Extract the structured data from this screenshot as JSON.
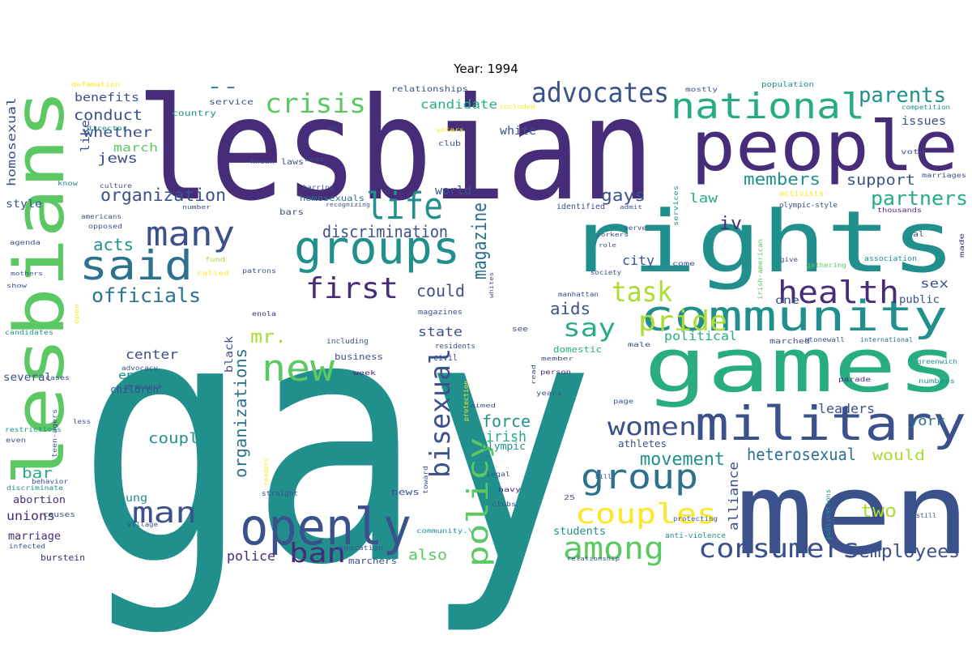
{
  "title": "Year: 1994",
  "palette": {
    "dark_purple": "#472c7a",
    "indigo": "#3b518b",
    "blue": "#2c718e",
    "teal": "#21908d",
    "green": "#27ad81",
    "lime": "#5cc863",
    "yellow_green": "#aadc32",
    "yellow": "#fde725"
  },
  "words": [
    {
      "text": "gay",
      "color": "#21908d"
    },
    {
      "text": "lesbian",
      "color": "#472c7a"
    },
    {
      "text": "men",
      "color": "#3b518b"
    },
    {
      "text": "games",
      "color": "#27ad81"
    },
    {
      "text": "rights",
      "color": "#21908d"
    },
    {
      "text": "people",
      "color": "#472c7a"
    },
    {
      "text": "lesbians",
      "color": "#5cc863"
    },
    {
      "text": "military",
      "color": "#3b518b"
    },
    {
      "text": "openly",
      "color": "#3b518b"
    },
    {
      "text": "community",
      "color": "#21908d"
    },
    {
      "text": "groups",
      "color": "#21908d"
    },
    {
      "text": "national",
      "color": "#27ad81"
    },
    {
      "text": "said",
      "color": "#2c718e"
    },
    {
      "text": "new",
      "color": "#5cc863"
    },
    {
      "text": "life",
      "color": "#21908d"
    },
    {
      "text": "many",
      "color": "#3b518b"
    },
    {
      "text": "health",
      "color": "#472c7a"
    },
    {
      "text": "group",
      "color": "#2c718e"
    },
    {
      "text": "couples",
      "color": "#fde725"
    },
    {
      "text": "among",
      "color": "#5cc863"
    },
    {
      "text": "consumers",
      "color": "#3b518b"
    },
    {
      "text": "man",
      "color": "#3b518b"
    },
    {
      "text": "ban",
      "color": "#472c7a"
    },
    {
      "text": "women",
      "color": "#3b518b"
    },
    {
      "text": "first",
      "color": "#472c7a"
    },
    {
      "text": "advocates",
      "color": "#3b518b"
    },
    {
      "text": "crisis",
      "color": "#5cc863"
    },
    {
      "text": "pride",
      "color": "#aadc32"
    },
    {
      "text": "task",
      "color": "#aadc32"
    },
    {
      "text": "policy",
      "color": "#5cc863"
    },
    {
      "text": "bisexual",
      "color": "#3b518b"
    },
    {
      "text": "say",
      "color": "#27ad81"
    },
    {
      "text": "parents",
      "color": "#21908d"
    },
    {
      "text": "partners",
      "color": "#27ad81"
    },
    {
      "text": "magazine",
      "color": "#2c718e"
    },
    {
      "text": "organization",
      "color": "#3b518b"
    },
    {
      "text": "discrimination",
      "color": "#3b518b"
    },
    {
      "text": "officials",
      "color": "#2c718e"
    },
    {
      "text": "organizations",
      "color": "#2c718e"
    },
    {
      "text": "employees",
      "color": "#3b518b"
    },
    {
      "text": "movement",
      "color": "#21908d"
    },
    {
      "text": "heterosexual",
      "color": "#2c718e"
    },
    {
      "text": "mr.",
      "color": "#aadc32"
    },
    {
      "text": "two",
      "color": "#aadc32"
    },
    {
      "text": "--",
      "color": "#2c718e"
    },
    {
      "text": "could",
      "color": "#3b518b"
    },
    {
      "text": "aids",
      "color": "#3b518b"
    },
    {
      "text": "force",
      "color": "#21908d"
    },
    {
      "text": "couple",
      "color": "#21908d"
    },
    {
      "text": "members",
      "color": "#21908d"
    },
    {
      "text": "gays",
      "color": "#3b518b"
    },
    {
      "text": "acts",
      "color": "#21908d"
    },
    {
      "text": "conduct",
      "color": "#3b518b"
    },
    {
      "text": "support",
      "color": "#3b518b"
    },
    {
      "text": "would",
      "color": "#aadc32"
    },
    {
      "text": "york",
      "color": "#2c718e"
    },
    {
      "text": "bar",
      "color": "#27ad81"
    },
    {
      "text": "iv",
      "color": "#472c7a"
    },
    {
      "text": "also",
      "color": "#5cc863"
    },
    {
      "text": "whether",
      "color": "#3b518b"
    },
    {
      "text": "jews",
      "color": "#3b518b"
    },
    {
      "text": "center",
      "color": "#3b518b"
    },
    {
      "text": "state",
      "color": "#3b518b"
    },
    {
      "text": "law",
      "color": "#27ad81"
    },
    {
      "text": "city",
      "color": "#3b518b"
    },
    {
      "text": "irish",
      "color": "#27ad81"
    },
    {
      "text": "police",
      "color": "#472c7a"
    },
    {
      "text": "alliance",
      "color": "#3b518b"
    },
    {
      "text": "leaders",
      "color": "#3b518b"
    },
    {
      "text": "political",
      "color": "#27ad81"
    },
    {
      "text": "sex",
      "color": "#3b518b"
    },
    {
      "text": "candidate",
      "color": "#27ad81"
    },
    {
      "text": "benefits",
      "color": "#3b518b"
    },
    {
      "text": "march",
      "color": "#5cc863"
    },
    {
      "text": "like",
      "color": "#3b518b"
    },
    {
      "text": "homosexual",
      "color": "#3b518b"
    },
    {
      "text": "issues",
      "color": "#3b518b"
    },
    {
      "text": "white",
      "color": "#3b518b"
    },
    {
      "text": "world",
      "color": "#3b518b"
    },
    {
      "text": "black",
      "color": "#3b518b"
    },
    {
      "text": "engage",
      "color": "#21908d"
    },
    {
      "text": "children",
      "color": "#3b518b"
    },
    {
      "text": "unions",
      "color": "#472c7a"
    },
    {
      "text": "marriage",
      "color": "#472c7a"
    },
    {
      "text": "young",
      "color": "#21908d"
    },
    {
      "text": "students",
      "color": "#21908d"
    },
    {
      "text": "athletes",
      "color": "#3b518b"
    },
    {
      "text": "style",
      "color": "#3b518b"
    },
    {
      "text": "several",
      "color": "#3b518b"
    },
    {
      "text": "abortion",
      "color": "#472c7a"
    },
    {
      "text": "public",
      "color": "#3b518b"
    },
    {
      "text": "one",
      "color": "#3b518b"
    },
    {
      "text": "olympic",
      "color": "#21908d"
    },
    {
      "text": "business",
      "color": "#3b518b"
    },
    {
      "text": "marchers",
      "color": "#3b518b"
    },
    {
      "text": "burstein",
      "color": "#472c7a"
    },
    {
      "text": "news",
      "color": "#3b518b"
    },
    {
      "text": "civil",
      "color": "#3b518b"
    },
    {
      "text": "homosexuals",
      "color": "#2c718e"
    },
    {
      "text": "bars",
      "color": "#3b518b"
    },
    {
      "text": "relationships",
      "color": "#3b518b"
    },
    {
      "text": "service",
      "color": "#3b518b"
    },
    {
      "text": "country",
      "color": "#21908d"
    },
    {
      "text": "domestic",
      "color": "#27ad81"
    },
    {
      "text": "defamation",
      "color": "#fde725"
    },
    {
      "text": "director",
      "color": "#21908d"
    },
    {
      "text": "mostly",
      "color": "#3b518b"
    },
    {
      "text": "population",
      "color": "#21908d"
    },
    {
      "text": "competition",
      "color": "#21908d"
    },
    {
      "text": "vote",
      "color": "#3b518b"
    },
    {
      "text": "marriages",
      "color": "#3b518b"
    },
    {
      "text": "activists",
      "color": "#fde725"
    },
    {
      "text": "olympic-style",
      "color": "#3b518b"
    },
    {
      "text": "thousands",
      "color": "#472c7a"
    },
    {
      "text": "al",
      "color": "#3b518b"
    },
    {
      "text": "made",
      "color": "#472c7a"
    },
    {
      "text": "association",
      "color": "#21908d"
    },
    {
      "text": "gathering",
      "color": "#5cc863"
    },
    {
      "text": "irish-american",
      "color": "#5cc863"
    },
    {
      "text": "stonewall",
      "color": "#3b518b"
    },
    {
      "text": "international",
      "color": "#2c718e"
    },
    {
      "text": "greenwich",
      "color": "#21908d"
    },
    {
      "text": "numbers",
      "color": "#21908d"
    },
    {
      "text": "parade",
      "color": "#472c7a"
    },
    {
      "text": "marched",
      "color": "#3b518b"
    },
    {
      "text": "male",
      "color": "#3b518b"
    },
    {
      "text": "anti-violence",
      "color": "#21908d"
    },
    {
      "text": "protecting",
      "color": "#3b518b"
    },
    {
      "text": "publications",
      "color": "#21908d"
    },
    {
      "text": "still",
      "color": "#3b518b"
    },
    {
      "text": "clubs",
      "color": "#3b518b"
    },
    {
      "text": "navy",
      "color": "#472c7a"
    },
    {
      "text": "25",
      "color": "#3b518b"
    },
    {
      "text": "community.\\",
      "color": "#21908d"
    },
    {
      "text": "relationship",
      "color": "#3b518b"
    },
    {
      "text": "education",
      "color": "#3b518b"
    },
    {
      "text": "village",
      "color": "#3b518b"
    },
    {
      "text": "infected",
      "color": "#3b518b"
    },
    {
      "text": "causes",
      "color": "#3b518b"
    },
    {
      "text": "behavior",
      "color": "#3b518b"
    },
    {
      "text": "discriminate",
      "color": "#21908d"
    },
    {
      "text": "even",
      "color": "#3b518b"
    },
    {
      "text": "restrictions",
      "color": "#21908d"
    },
    {
      "text": "less",
      "color": "#3b518b"
    },
    {
      "text": "teen-agers",
      "color": "#3b518b"
    },
    {
      "text": "cases",
      "color": "#3b518b"
    },
    {
      "text": "presence",
      "color": "#3b518b"
    },
    {
      "text": "advocacy",
      "color": "#3b518b"
    },
    {
      "text": "candidates",
      "color": "#21908d"
    },
    {
      "text": "open",
      "color": "#fde725"
    },
    {
      "text": "show",
      "color": "#3b518b"
    },
    {
      "text": "mothers",
      "color": "#3b518b"
    },
    {
      "text": "called",
      "color": "#fde725"
    },
    {
      "text": "fund",
      "color": "#aadc32"
    },
    {
      "text": "agenda",
      "color": "#3b518b"
    },
    {
      "text": "opposed",
      "color": "#3b518b"
    },
    {
      "text": "americans",
      "color": "#3b518b"
    },
    {
      "text": "know",
      "color": "#21908d"
    },
    {
      "text": "culture",
      "color": "#3b518b"
    },
    {
      "text": "number",
      "color": "#3b518b"
    },
    {
      "text": "recognizing",
      "color": "#3b518b"
    },
    {
      "text": "barring",
      "color": "#3b518b"
    },
    {
      "text": "known",
      "color": "#3b518b"
    },
    {
      "text": "laws",
      "color": "#3b518b"
    },
    {
      "text": "west",
      "color": "#3b518b"
    },
    {
      "text": "club",
      "color": "#3b518b"
    },
    {
      "text": "voters",
      "color": "#fde725"
    },
    {
      "text": "ms.",
      "color": "#3b518b"
    },
    {
      "text": "included",
      "color": "#fde725"
    },
    {
      "text": "identified",
      "color": "#3b518b"
    },
    {
      "text": "admit",
      "color": "#3b518b"
    },
    {
      "text": "services",
      "color": "#21908d"
    },
    {
      "text": "yorkers",
      "color": "#3b518b"
    },
    {
      "text": "serve",
      "color": "#3b518b"
    },
    {
      "text": "role",
      "color": "#3b518b"
    },
    {
      "text": "society",
      "color": "#3b518b"
    },
    {
      "text": "come",
      "color": "#3b518b"
    },
    {
      "text": "give",
      "color": "#3b518b"
    },
    {
      "text": "manhattan",
      "color": "#3b518b"
    },
    {
      "text": "patrons",
      "color": "#3b518b"
    },
    {
      "text": "whites",
      "color": "#3b518b"
    },
    {
      "text": "enola",
      "color": "#472c7a"
    },
    {
      "text": "magazines",
      "color": "#3b518b"
    },
    {
      "text": "see",
      "color": "#3b518b"
    },
    {
      "text": "including",
      "color": "#3b518b"
    },
    {
      "text": "residents",
      "color": "#3b518b"
    },
    {
      "text": "week",
      "color": "#472c7a"
    },
    {
      "text": "member",
      "color": "#3b518b"
    },
    {
      "text": "person",
      "color": "#472c7a"
    },
    {
      "text": "read",
      "color": "#3b518b"
    },
    {
      "text": "years",
      "color": "#3b518b"
    },
    {
      "text": "aimed",
      "color": "#3b518b"
    },
    {
      "text": "page",
      "color": "#3b518b"
    },
    {
      "text": "toward",
      "color": "#3b518b"
    },
    {
      "text": "bill",
      "color": "#3b518b"
    },
    {
      "text": "legal",
      "color": "#3b518b"
    },
    {
      "text": "protection",
      "color": "#fde725"
    },
    {
      "text": "readers",
      "color": "#fde725"
    },
    {
      "text": "straight",
      "color": "#3b518b"
    }
  ]
}
